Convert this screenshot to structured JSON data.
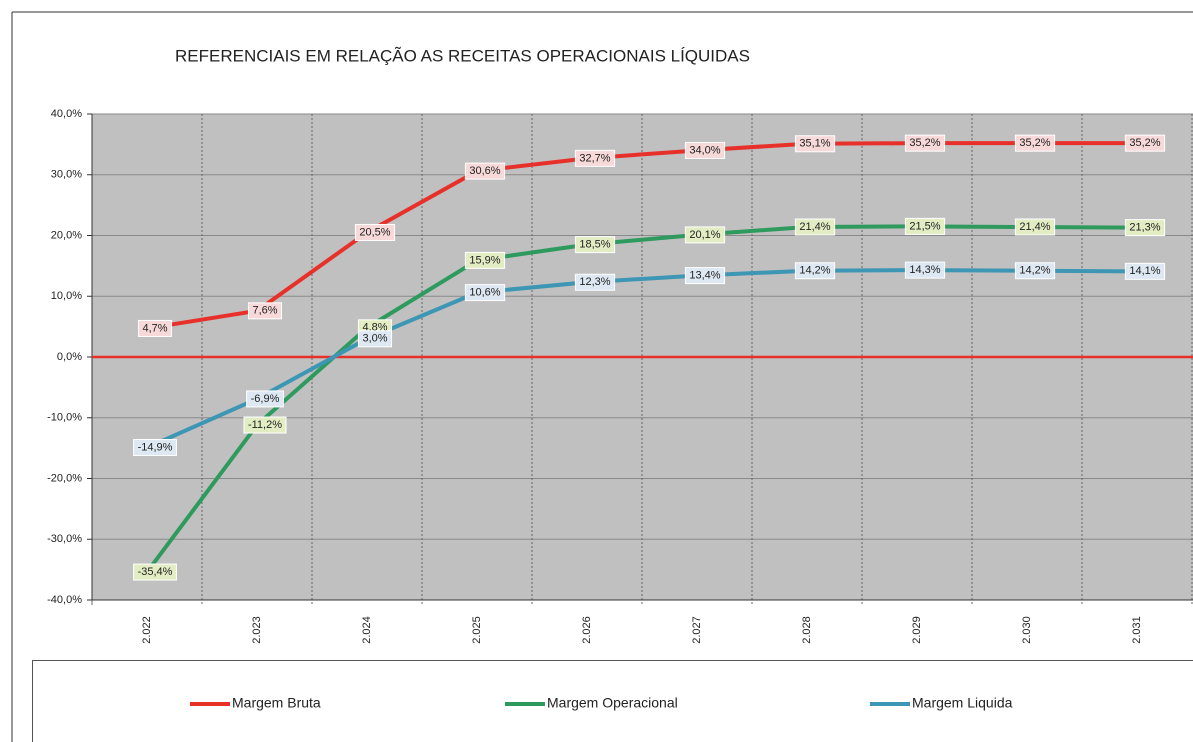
{
  "chart_data": {
    "type": "line",
    "title": "REFERENCIAIS  EM RELAÇÃO AS RECEITAS OPERACIONAIS  LÍQUIDAS",
    "categories": [
      "2.022",
      "2.023",
      "2.024",
      "2.025",
      "2.026",
      "2.027",
      "2.028",
      "2.029",
      "2.030",
      "2.031"
    ],
    "ylim": [
      -40,
      40
    ],
    "yticks": [
      {
        "value": -40,
        "label": "-40,0%"
      },
      {
        "value": -30,
        "label": "-30,0%"
      },
      {
        "value": -20,
        "label": "-20,0%"
      },
      {
        "value": -10,
        "label": "-10,0%"
      },
      {
        "value": 0,
        "label": "0,0%"
      },
      {
        "value": 10,
        "label": "10,0%"
      },
      {
        "value": 20,
        "label": "20,0%"
      },
      {
        "value": 30,
        "label": "30,0%"
      },
      {
        "value": 40,
        "label": "40,0%"
      }
    ],
    "grid": true,
    "legend": "bottom",
    "series": [
      {
        "name": "Margem Bruta",
        "color": "#e8302a",
        "label_fill": "#f6d9d8",
        "values": [
          4.7,
          7.6,
          20.5,
          30.6,
          32.7,
          34.0,
          35.1,
          35.2,
          35.2,
          35.2
        ],
        "value_labels": [
          "4,7%",
          "7,6%",
          "20,5%",
          "30,6%",
          "32,7%",
          "34,0%",
          "35,1%",
          "35,2%",
          "35,2%",
          "35,2%"
        ]
      },
      {
        "name": "Margem Operacional",
        "color": "#2e9a5e",
        "label_fill": "#e3edc4",
        "values": [
          -35.4,
          -11.2,
          4.8,
          15.9,
          18.5,
          20.1,
          21.4,
          21.5,
          21.4,
          21.3
        ],
        "value_labels": [
          "-35,4%",
          "-11,2%",
          "4,8%",
          "15,9%",
          "18,5%",
          "20,1%",
          "21,4%",
          "21,5%",
          "21,4%",
          "21,3%"
        ]
      },
      {
        "name": "Margem Liquida",
        "color": "#3c96b4",
        "label_fill": "#dde8f2",
        "values": [
          -14.9,
          -6.9,
          3.0,
          10.6,
          12.3,
          13.4,
          14.2,
          14.3,
          14.2,
          14.1
        ],
        "value_labels": [
          "-14,9%",
          "-6,9%",
          "3,0%",
          "10,6%",
          "12,3%",
          "13,4%",
          "14,2%",
          "14,3%",
          "14,2%",
          "14,1%"
        ]
      }
    ]
  }
}
